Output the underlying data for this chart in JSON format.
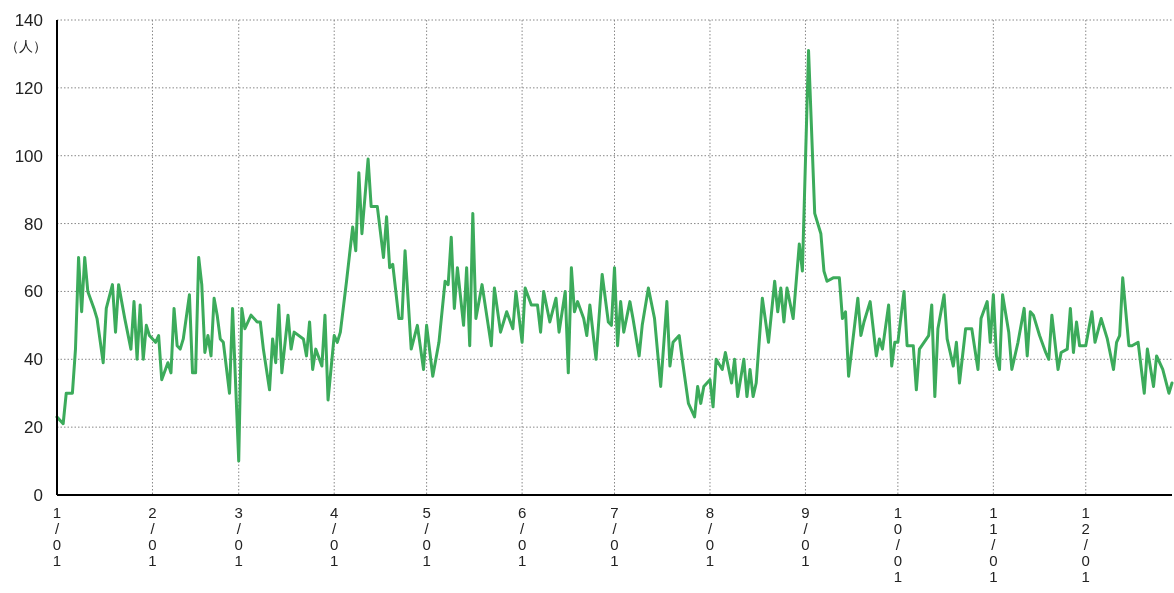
{
  "chart_data": {
    "type": "line",
    "ylabel": "（人）",
    "x": [
      "--01-01",
      "--01-03",
      "--01-04",
      "--01-06",
      "--01-07",
      "--01-08",
      "--01-09",
      "--01-10",
      "--01-11",
      "--01-13",
      "--01-14",
      "--01-16",
      "--01-17",
      "--01-19",
      "--01-20",
      "--01-21",
      "--01-23",
      "--01-25",
      "--01-26",
      "--01-27",
      "--01-28",
      "--01-29",
      "--01-30",
      "--01-31",
      "--02-02",
      "--02-03",
      "--02-04",
      "--02-06",
      "--02-07",
      "--02-08",
      "--02-09",
      "--02-10",
      "--02-11",
      "--02-13",
      "--02-14",
      "--02-15",
      "--02-16",
      "--02-17",
      "--02-18",
      "--02-19",
      "--02-20",
      "--02-21",
      "--02-22",
      "--02-23",
      "--02-24",
      "--02-26",
      "--02-27",
      "--03-01",
      "--03-02",
      "--03-03",
      "--03-05",
      "--03-07",
      "--03-08",
      "--03-09",
      "--03-11",
      "--03-12",
      "--03-13",
      "--03-14",
      "--03-15",
      "--03-17",
      "--03-18",
      "--03-19",
      "--03-22",
      "--03-23",
      "--03-24",
      "--03-25",
      "--03-26",
      "--03-28",
      "--03-29",
      "--03-30",
      "--04-01",
      "--04-02",
      "--04-03",
      "--04-05",
      "--04-07",
      "--04-08",
      "--04-09",
      "--04-10",
      "--04-12",
      "--04-13",
      "--04-15",
      "--04-17",
      "--04-18",
      "--04-19",
      "--04-20",
      "--04-22",
      "--04-23",
      "--04-24",
      "--04-26",
      "--04-28",
      "--04-30",
      "--05-01",
      "--05-03",
      "--05-05",
      "--05-07",
      "--05-08",
      "--05-09",
      "--05-10",
      "--05-11",
      "--05-13",
      "--05-14",
      "--05-15",
      "--05-16",
      "--05-17",
      "--05-19",
      "--05-21",
      "--05-22",
      "--05-23",
      "--05-25",
      "--05-27",
      "--05-29",
      "--05-30",
      "--06-01",
      "--06-02",
      "--06-04",
      "--06-06",
      "--06-07",
      "--06-08",
      "--06-10",
      "--06-12",
      "--06-13",
      "--06-15",
      "--06-16",
      "--06-17",
      "--06-18",
      "--06-19",
      "--06-21",
      "--06-22",
      "--06-23",
      "--06-25",
      "--06-27",
      "--06-29",
      "--06-30",
      "--07-01",
      "--07-02",
      "--07-03",
      "--07-04",
      "--07-06",
      "--07-07",
      "--07-09",
      "--07-10",
      "--07-12",
      "--07-14",
      "--07-16",
      "--07-18",
      "--07-19",
      "--07-20",
      "--07-22",
      "--07-23",
      "--07-25",
      "--07-27",
      "--07-28",
      "--07-29",
      "--07-30",
      "--08-01",
      "--08-02",
      "--08-03",
      "--08-05",
      "--08-06",
      "--08-08",
      "--08-09",
      "--08-10",
      "--08-12",
      "--08-13",
      "--08-14",
      "--08-15",
      "--08-16",
      "--08-18",
      "--08-20",
      "--08-22",
      "--08-23",
      "--08-24",
      "--08-25",
      "--08-26",
      "--08-28",
      "--08-30",
      "--08-31",
      "--09-02",
      "--09-04",
      "--09-06",
      "--09-07",
      "--09-08",
      "--09-10",
      "--09-12",
      "--09-13",
      "--09-14",
      "--09-15",
      "--09-18",
      "--09-19",
      "--09-20",
      "--09-22",
      "--09-24",
      "--09-25",
      "--09-26",
      "--09-28",
      "--09-29",
      "--09-30",
      "--10-01",
      "--10-03",
      "--10-04",
      "--10-06",
      "--10-07",
      "--10-08",
      "--10-11",
      "--10-12",
      "--10-13",
      "--10-14",
      "--10-16",
      "--10-17",
      "--10-19",
      "--10-20",
      "--10-21",
      "--10-23",
      "--10-25",
      "--10-27",
      "--10-28",
      "--10-30",
      "--10-31",
      "--11-01",
      "--11-02",
      "--11-03",
      "--11-04",
      "--11-06",
      "--11-07",
      "--11-09",
      "--11-11",
      "--11-12",
      "--11-13",
      "--11-14",
      "--11-16",
      "--11-18",
      "--11-19",
      "--11-20",
      "--11-22",
      "--11-23",
      "--11-25",
      "--11-26",
      "--11-27",
      "--11-28",
      "--11-29",
      "--12-01",
      "--12-03",
      "--12-04",
      "--12-06",
      "--12-08",
      "--12-10",
      "--12-11",
      "--12-12",
      "--12-13",
      "--12-15",
      "--12-16",
      "--12-18",
      "--12-20",
      "--12-21",
      "--12-23",
      "--12-24",
      "--12-26",
      "--12-28",
      "--12-29"
    ],
    "series": [
      {
        "color": "#3cab5b",
        "values": [
          23,
          21,
          30,
          30,
          43,
          70,
          54,
          70,
          60,
          55,
          52,
          39,
          55,
          62,
          48,
          62,
          52,
          43,
          57,
          40,
          56,
          40,
          50,
          47,
          45,
          47,
          34,
          39,
          36,
          55,
          44,
          43,
          46,
          59,
          36,
          36,
          70,
          62,
          42,
          47,
          41,
          58,
          53,
          46,
          45,
          30,
          55,
          10,
          55,
          49,
          53,
          51,
          51,
          43,
          31,
          46,
          39,
          56,
          36,
          53,
          43,
          48,
          46,
          41,
          51,
          37,
          43,
          38,
          53,
          28,
          47,
          45,
          48,
          63,
          79,
          72,
          95,
          77,
          99,
          85,
          85,
          70,
          82,
          67,
          68,
          52,
          52,
          72,
          43,
          50,
          37,
          50,
          35,
          45,
          63,
          62,
          76,
          55,
          67,
          50,
          67,
          44,
          83,
          52,
          62,
          50,
          44,
          61,
          48,
          54,
          49,
          60,
          45,
          61,
          56,
          56,
          48,
          60,
          51,
          58,
          48,
          60,
          36,
          67,
          54,
          57,
          52,
          47,
          56,
          40,
          65,
          51,
          50,
          67,
          44,
          57,
          48,
          57,
          52,
          41,
          50,
          61,
          52,
          32,
          57,
          38,
          45,
          47,
          40,
          27,
          23,
          32,
          27,
          32,
          34,
          26,
          40,
          37,
          42,
          33,
          40,
          29,
          40,
          29,
          37,
          29,
          33,
          58,
          45,
          63,
          54,
          61,
          51,
          61,
          52,
          74,
          66,
          131,
          83,
          77,
          66,
          63,
          64,
          64,
          52,
          54,
          35,
          58,
          47,
          51,
          57,
          41,
          46,
          43,
          56,
          38,
          45,
          45,
          60,
          44,
          44,
          31,
          43,
          47,
          56,
          29,
          49,
          59,
          46,
          38,
          45,
          33,
          49,
          49,
          37,
          52,
          57,
          45,
          59,
          41,
          37,
          59,
          48,
          37,
          45,
          55,
          41,
          54,
          53,
          47,
          42,
          40,
          53,
          37,
          42,
          43,
          55,
          42,
          51,
          44,
          44,
          54,
          45,
          52,
          46,
          37,
          45,
          47,
          64,
          44,
          44,
          45,
          30,
          43,
          32,
          41,
          37,
          30,
          33
        ]
      }
    ],
    "xlim": [
      "--01-01",
      "--12-29"
    ],
    "xticks": [
      {
        "value": "--01-01",
        "label": "1/01"
      },
      {
        "value": "--02-01",
        "label": "2/01"
      },
      {
        "value": "--03-01",
        "label": "3/01"
      },
      {
        "value": "--04-01",
        "label": "4/01"
      },
      {
        "value": "--05-01",
        "label": "5/01"
      },
      {
        "value": "--06-01",
        "label": "6/01"
      },
      {
        "value": "--07-01",
        "label": "7/01"
      },
      {
        "value": "--08-01",
        "label": "8/01"
      },
      {
        "value": "--09-01",
        "label": "9/01"
      },
      {
        "value": "--10-01",
        "label": "10/01"
      },
      {
        "value": "--11-01",
        "label": "11/01"
      },
      {
        "value": "--12-01",
        "label": "12/01"
      }
    ],
    "ylim": [
      0,
      140
    ],
    "yticks": [
      0,
      20,
      40,
      60,
      80,
      100,
      120,
      140
    ],
    "grid": true
  }
}
